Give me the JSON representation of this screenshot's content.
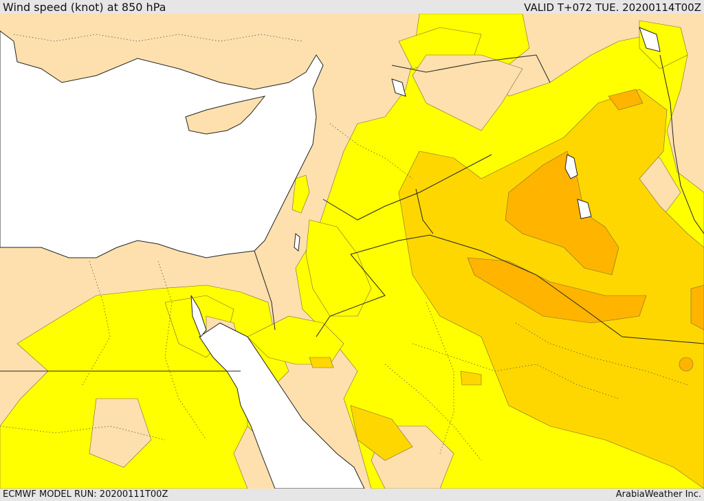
{
  "header": {
    "title": "Wind speed (knot) at 850 hPa",
    "valid": "VALID T+072 TUE. 20200114T00Z"
  },
  "footer": {
    "model_run": "ECMWF MODEL RUN: 20200111T00Z",
    "credit": "ArabiaWeather Inc."
  },
  "map": {
    "variable": "wind speed at 850 hPa",
    "colors": {
      "sea": "#ffffff",
      "land_calm": "#fde0ad",
      "band_1": "#ffff00",
      "band_2": "#ffd700",
      "band_3": "#ffb400",
      "border": "#222222",
      "admin_line": "#555555",
      "contour": "#7a6a3a"
    }
  }
}
